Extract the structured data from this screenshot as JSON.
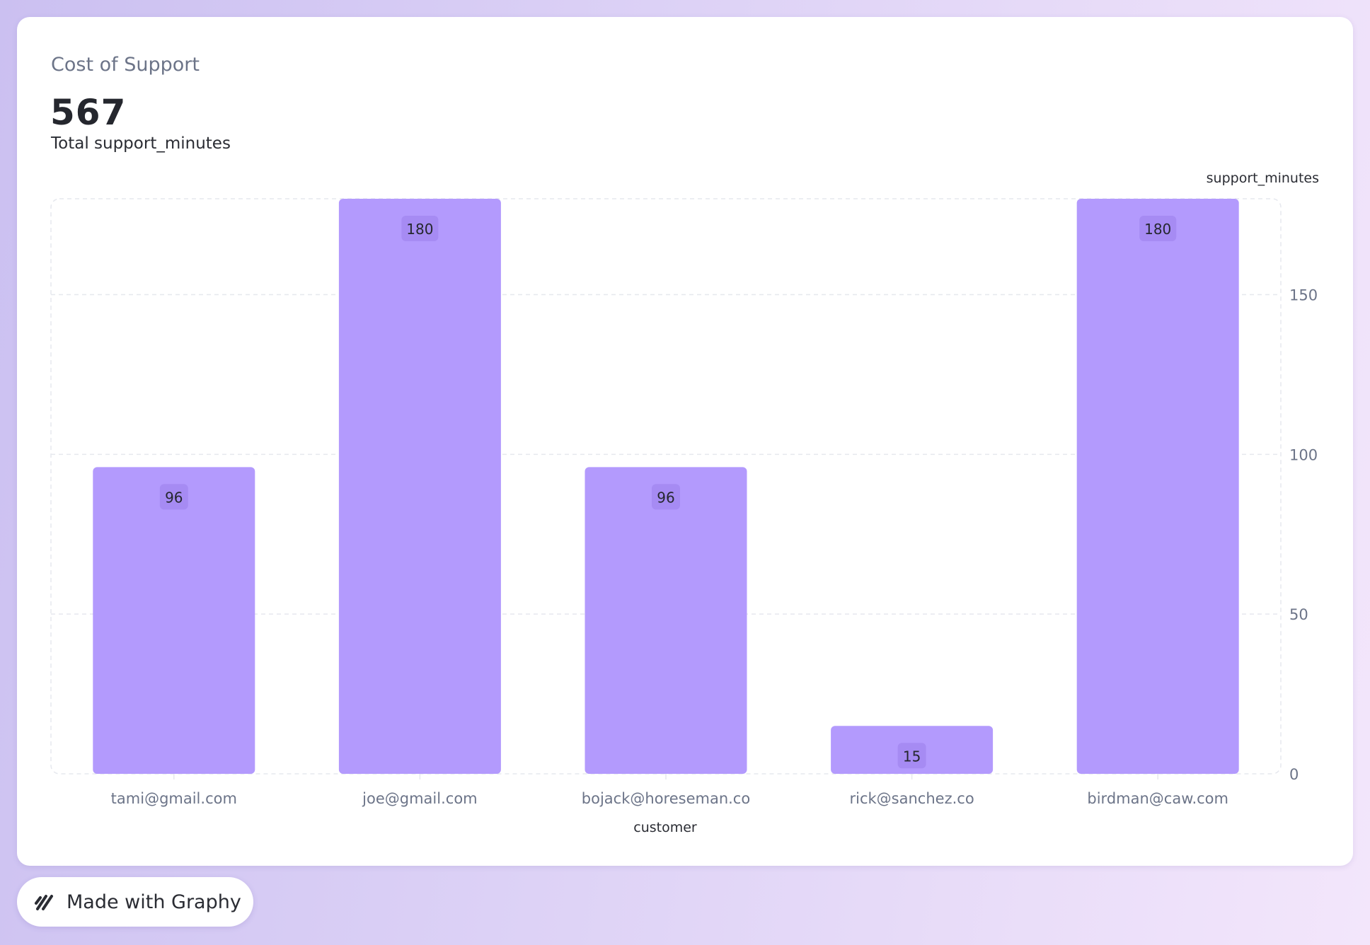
{
  "card": {
    "title": "Cost of Support",
    "metric_value": "567",
    "metric_caption": "Total support_minutes"
  },
  "badge": {
    "icon": "graphy-logo-icon",
    "label": "Made with Graphy"
  },
  "colors": {
    "bar": "#b39afd",
    "label_bg": "#a68bf3",
    "grid": "#e6e8ee",
    "tick_text": "#6c7488",
    "axis_title_text": "#2a2c33"
  },
  "chart_data": {
    "type": "bar",
    "categories": [
      "tami@gmail.com",
      "joe@gmail.com",
      "bojack@horeseman.co",
      "rick@sanchez.co",
      "birdman@caw.com"
    ],
    "series": [
      {
        "values": [
          96,
          180,
          96,
          15,
          180
        ]
      }
    ],
    "data_labels": [
      "96",
      "180",
      "96",
      "15",
      "180"
    ],
    "xlabel": "customer",
    "ylabel": "support_minutes",
    "ylim": [
      0,
      180
    ],
    "yticks": [
      0,
      50,
      100,
      150
    ],
    "ytick_labels": [
      "0",
      "50",
      "100",
      "150"
    ],
    "y_axis_position": "right",
    "grid": true
  }
}
